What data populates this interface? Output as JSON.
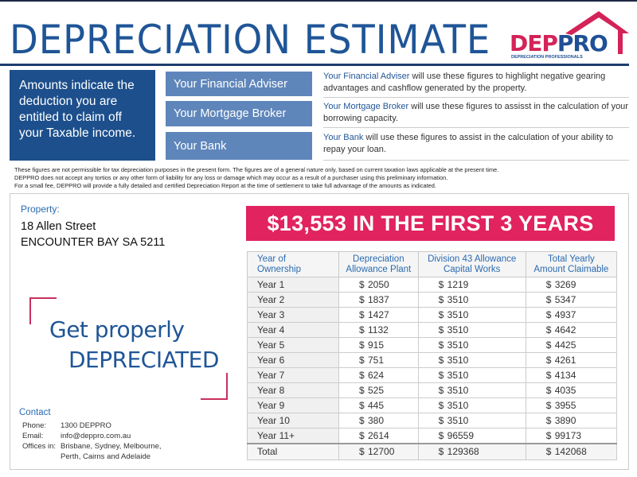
{
  "header": {
    "title": "DEPRECIATION ESTIMATE",
    "logo_text_a": "DEP",
    "logo_text_b": "PRO",
    "logo_tagline": "DEPRECIATION PROFESSIONALS"
  },
  "intro": "Amounts indicate the deduction you are entitled to claim off your Taxable income.",
  "roles": [
    {
      "label": "Your Financial Adviser",
      "link": "Your Financial Adviser",
      "desc": " will use these figures to highlight negative gearing advantages and cashflow generated by the property."
    },
    {
      "label": "Your Mortgage Broker",
      "link": "Your Mortgage Broker",
      "desc": " will use these figures to assisst in the calculation of your borrowing capacity."
    },
    {
      "label": "Your Bank",
      "link": "Your Bank",
      "desc": " will use these figures to assist in the calculation of your ability to repay your loan."
    }
  ],
  "disclaimer": [
    "These figures are not permissible for tax depreciation purposes in the present form. The figures are of a general nature only, based on current taxation laws applicable at the present time.",
    "DEPPRO does not accept any tortios or any other form of liability for any loss or damage which may occur as a result of a purchaser using this preliminary information.",
    "For a small fee, DEPPRO will provide a fully detailed and certified Depreciation Report at the time of settlement to take full advantage of the amounts as indicated."
  ],
  "property": {
    "label": "Property:",
    "line1": "18 Allen Street",
    "line2": "ENCOUNTER BAY SA 5211"
  },
  "banner": "$13,553 IN THE FIRST 3 YEARS",
  "slogan": {
    "line1": "Get properly",
    "line2": "DEPRECIATED"
  },
  "contact": {
    "title": "Contact",
    "phone_label": "Phone:",
    "phone": "1300 DEPPRO",
    "email_label": "Email:",
    "email": "info@deppro.com.au",
    "offices_label": "Offices in:",
    "offices1": "Brisbane, Sydney, Melbourne,",
    "offices2": "Perth, Cairns and Adelaide"
  },
  "table": {
    "headers": [
      "Year of\nOwnership",
      "Depreciation\nAllowance Plant",
      "Division 43 Allowance\nCapital Works",
      "Total Yearly\nAmount Claimable"
    ],
    "currency": "$",
    "rows": [
      [
        "Year 1",
        "2050",
        "1219",
        "3269"
      ],
      [
        "Year 2",
        "1837",
        "3510",
        "5347"
      ],
      [
        "Year 3",
        "1427",
        "3510",
        "4937"
      ],
      [
        "Year 4",
        "1132",
        "3510",
        "4642"
      ],
      [
        "Year 5",
        "915",
        "3510",
        "4425"
      ],
      [
        "Year 6",
        "751",
        "3510",
        "4261"
      ],
      [
        "Year 7",
        "624",
        "3510",
        "4134"
      ],
      [
        "Year 8",
        "525",
        "3510",
        "4035"
      ],
      [
        "Year 9",
        "445",
        "3510",
        "3955"
      ],
      [
        "Year 10",
        "380",
        "3510",
        "3890"
      ],
      [
        "Year 11+",
        "2614",
        "96559",
        "99173"
      ]
    ],
    "total": [
      "Total",
      "12700",
      "129368",
      "142068"
    ]
  }
}
